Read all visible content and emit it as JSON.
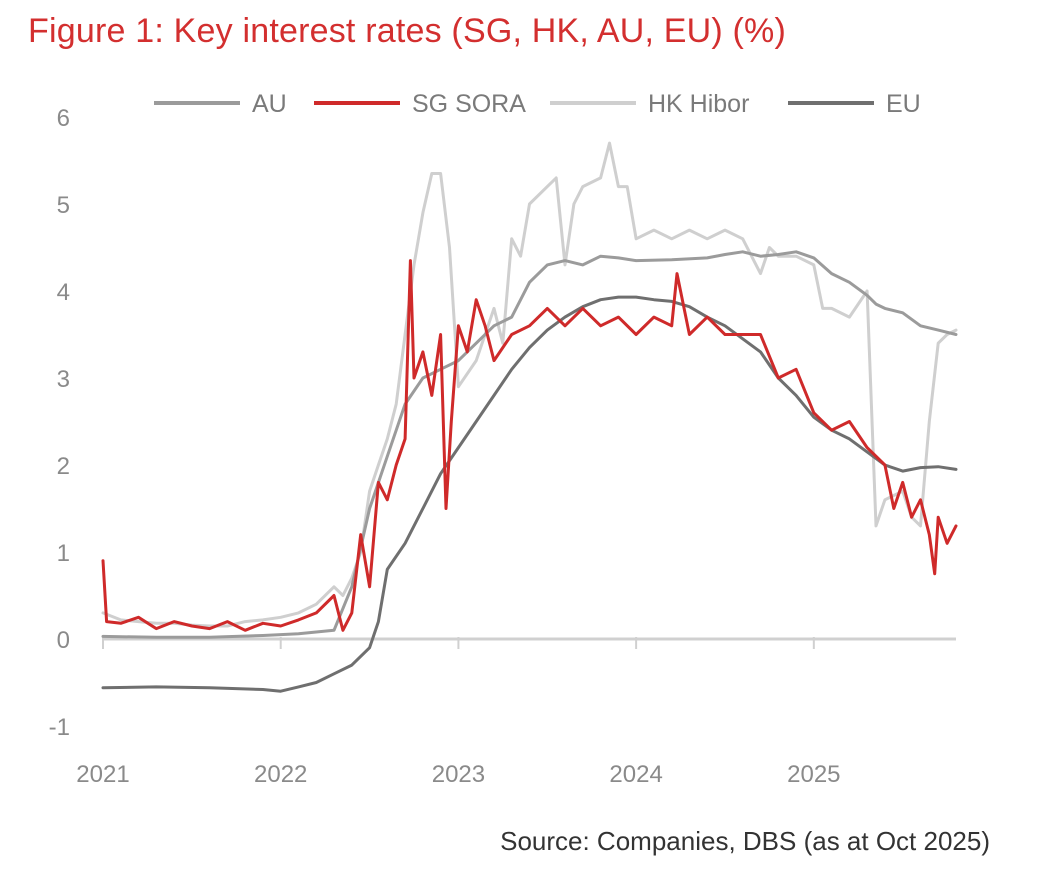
{
  "title": "Figure 1:  Key interest rates (SG, HK, AU, EU) (%)",
  "source": "Source:   Companies, DBS (as at Oct 2025)",
  "colors": {
    "title": "#d32f2f",
    "axis": "#d0d0d0",
    "tick_text": "#8a8a8a"
  },
  "chart_data": {
    "type": "line",
    "title": "Key interest rates (SG, HK, AU, EU) (%)",
    "xlabel": "",
    "ylabel": "%",
    "xlim": [
      2021.0,
      2025.8
    ],
    "ylim": [
      -1,
      6
    ],
    "x_ticks": [
      2021,
      2022,
      2023,
      2024,
      2025
    ],
    "x_tick_labels": [
      "2021",
      "2022",
      "2023",
      "2024",
      "2025"
    ],
    "y_ticks": [
      -1,
      0,
      1,
      2,
      3,
      4,
      5,
      6
    ],
    "y_tick_labels": [
      "-1",
      "0",
      "1",
      "2",
      "3",
      "4",
      "5",
      "6"
    ],
    "legend_position": "top",
    "legend": [
      "AU",
      "SG SORA",
      "HK Hibor",
      "EU"
    ],
    "series": [
      {
        "name": "AU",
        "color": "#9b9b9b",
        "width": 3,
        "points": [
          [
            2021.0,
            0.03
          ],
          [
            2021.3,
            0.02
          ],
          [
            2021.6,
            0.02
          ],
          [
            2021.9,
            0.04
          ],
          [
            2022.1,
            0.06
          ],
          [
            2022.3,
            0.1
          ],
          [
            2022.4,
            0.6
          ],
          [
            2022.5,
            1.5
          ],
          [
            2022.6,
            2.1
          ],
          [
            2022.7,
            2.7
          ],
          [
            2022.8,
            3.0
          ],
          [
            2022.9,
            3.1
          ],
          [
            2023.0,
            3.2
          ],
          [
            2023.1,
            3.4
          ],
          [
            2023.2,
            3.6
          ],
          [
            2023.3,
            3.7
          ],
          [
            2023.4,
            4.1
          ],
          [
            2023.5,
            4.3
          ],
          [
            2023.6,
            4.35
          ],
          [
            2023.7,
            4.3
          ],
          [
            2023.8,
            4.4
          ],
          [
            2023.9,
            4.38
          ],
          [
            2024.0,
            4.35
          ],
          [
            2024.2,
            4.36
          ],
          [
            2024.4,
            4.38
          ],
          [
            2024.5,
            4.42
          ],
          [
            2024.6,
            4.45
          ],
          [
            2024.7,
            4.4
          ],
          [
            2024.8,
            4.42
          ],
          [
            2024.9,
            4.45
          ],
          [
            2025.0,
            4.38
          ],
          [
            2025.1,
            4.2
          ],
          [
            2025.2,
            4.1
          ],
          [
            2025.3,
            3.95
          ],
          [
            2025.35,
            3.85
          ],
          [
            2025.4,
            3.8
          ],
          [
            2025.5,
            3.75
          ],
          [
            2025.6,
            3.6
          ],
          [
            2025.7,
            3.55
          ],
          [
            2025.8,
            3.5
          ]
        ]
      },
      {
        "name": "SG SORA",
        "color": "#cf2a2a",
        "width": 3,
        "points": [
          [
            2021.0,
            0.9
          ],
          [
            2021.02,
            0.2
          ],
          [
            2021.1,
            0.18
          ],
          [
            2021.2,
            0.25
          ],
          [
            2021.3,
            0.12
          ],
          [
            2021.4,
            0.2
          ],
          [
            2021.5,
            0.15
          ],
          [
            2021.6,
            0.12
          ],
          [
            2021.7,
            0.2
          ],
          [
            2021.8,
            0.1
          ],
          [
            2021.9,
            0.18
          ],
          [
            2022.0,
            0.15
          ],
          [
            2022.1,
            0.22
          ],
          [
            2022.2,
            0.3
          ],
          [
            2022.3,
            0.5
          ],
          [
            2022.35,
            0.1
          ],
          [
            2022.4,
            0.3
          ],
          [
            2022.45,
            1.2
          ],
          [
            2022.5,
            0.6
          ],
          [
            2022.55,
            1.8
          ],
          [
            2022.6,
            1.6
          ],
          [
            2022.65,
            2.0
          ],
          [
            2022.7,
            2.3
          ],
          [
            2022.73,
            4.35
          ],
          [
            2022.75,
            3.0
          ],
          [
            2022.8,
            3.3
          ],
          [
            2022.85,
            2.8
          ],
          [
            2022.9,
            3.5
          ],
          [
            2022.93,
            1.5
          ],
          [
            2022.96,
            2.5
          ],
          [
            2023.0,
            3.6
          ],
          [
            2023.05,
            3.3
          ],
          [
            2023.1,
            3.9
          ],
          [
            2023.15,
            3.6
          ],
          [
            2023.2,
            3.2
          ],
          [
            2023.3,
            3.5
          ],
          [
            2023.4,
            3.6
          ],
          [
            2023.5,
            3.8
          ],
          [
            2023.6,
            3.6
          ],
          [
            2023.7,
            3.8
          ],
          [
            2023.8,
            3.6
          ],
          [
            2023.9,
            3.7
          ],
          [
            2024.0,
            3.5
          ],
          [
            2024.1,
            3.7
          ],
          [
            2024.2,
            3.6
          ],
          [
            2024.23,
            4.2
          ],
          [
            2024.3,
            3.5
          ],
          [
            2024.4,
            3.7
          ],
          [
            2024.5,
            3.5
          ],
          [
            2024.6,
            3.5
          ],
          [
            2024.7,
            3.5
          ],
          [
            2024.8,
            3.0
          ],
          [
            2024.9,
            3.1
          ],
          [
            2025.0,
            2.6
          ],
          [
            2025.1,
            2.4
          ],
          [
            2025.2,
            2.5
          ],
          [
            2025.3,
            2.2
          ],
          [
            2025.4,
            2.0
          ],
          [
            2025.45,
            1.5
          ],
          [
            2025.5,
            1.8
          ],
          [
            2025.55,
            1.4
          ],
          [
            2025.6,
            1.6
          ],
          [
            2025.65,
            1.2
          ],
          [
            2025.68,
            0.75
          ],
          [
            2025.7,
            1.4
          ],
          [
            2025.75,
            1.1
          ],
          [
            2025.8,
            1.3
          ]
        ]
      },
      {
        "name": "HK Hibor",
        "color": "#cfcfcf",
        "width": 3,
        "points": [
          [
            2021.0,
            0.3
          ],
          [
            2021.1,
            0.22
          ],
          [
            2021.2,
            0.2
          ],
          [
            2021.3,
            0.18
          ],
          [
            2021.4,
            0.18
          ],
          [
            2021.5,
            0.16
          ],
          [
            2021.6,
            0.15
          ],
          [
            2021.7,
            0.15
          ],
          [
            2021.8,
            0.2
          ],
          [
            2021.9,
            0.22
          ],
          [
            2022.0,
            0.25
          ],
          [
            2022.1,
            0.3
          ],
          [
            2022.2,
            0.4
          ],
          [
            2022.3,
            0.6
          ],
          [
            2022.35,
            0.5
          ],
          [
            2022.4,
            0.7
          ],
          [
            2022.45,
            1.0
          ],
          [
            2022.5,
            1.7
          ],
          [
            2022.55,
            2.0
          ],
          [
            2022.6,
            2.3
          ],
          [
            2022.65,
            2.7
          ],
          [
            2022.7,
            3.5
          ],
          [
            2022.75,
            4.3
          ],
          [
            2022.8,
            4.9
          ],
          [
            2022.85,
            5.35
          ],
          [
            2022.9,
            5.35
          ],
          [
            2022.95,
            4.5
          ],
          [
            2023.0,
            2.9
          ],
          [
            2023.1,
            3.2
          ],
          [
            2023.2,
            3.8
          ],
          [
            2023.25,
            3.4
          ],
          [
            2023.3,
            4.6
          ],
          [
            2023.35,
            4.4
          ],
          [
            2023.4,
            5.0
          ],
          [
            2023.5,
            5.2
          ],
          [
            2023.55,
            5.3
          ],
          [
            2023.6,
            4.3
          ],
          [
            2023.65,
            5.0
          ],
          [
            2023.7,
            5.2
          ],
          [
            2023.8,
            5.3
          ],
          [
            2023.85,
            5.7
          ],
          [
            2023.9,
            5.2
          ],
          [
            2023.95,
            5.2
          ],
          [
            2024.0,
            4.6
          ],
          [
            2024.1,
            4.7
          ],
          [
            2024.2,
            4.6
          ],
          [
            2024.3,
            4.7
          ],
          [
            2024.4,
            4.6
          ],
          [
            2024.5,
            4.7
          ],
          [
            2024.6,
            4.6
          ],
          [
            2024.7,
            4.2
          ],
          [
            2024.75,
            4.5
          ],
          [
            2024.8,
            4.4
          ],
          [
            2024.9,
            4.4
          ],
          [
            2025.0,
            4.3
          ],
          [
            2025.05,
            3.8
          ],
          [
            2025.1,
            3.8
          ],
          [
            2025.2,
            3.7
          ],
          [
            2025.3,
            4.0
          ],
          [
            2025.35,
            1.3
          ],
          [
            2025.4,
            1.6
          ],
          [
            2025.5,
            1.7
          ],
          [
            2025.55,
            1.4
          ],
          [
            2025.6,
            1.3
          ],
          [
            2025.65,
            2.5
          ],
          [
            2025.7,
            3.4
          ],
          [
            2025.75,
            3.5
          ],
          [
            2025.8,
            3.55
          ]
        ]
      },
      {
        "name": "EU",
        "color": "#6f6f6f",
        "width": 3,
        "points": [
          [
            2021.0,
            -0.56
          ],
          [
            2021.3,
            -0.55
          ],
          [
            2021.6,
            -0.56
          ],
          [
            2021.9,
            -0.58
          ],
          [
            2022.0,
            -0.6
          ],
          [
            2022.1,
            -0.55
          ],
          [
            2022.2,
            -0.5
          ],
          [
            2022.3,
            -0.4
          ],
          [
            2022.4,
            -0.3
          ],
          [
            2022.5,
            -0.1
          ],
          [
            2022.55,
            0.2
          ],
          [
            2022.6,
            0.8
          ],
          [
            2022.7,
            1.1
          ],
          [
            2022.8,
            1.5
          ],
          [
            2022.9,
            1.9
          ],
          [
            2023.0,
            2.2
          ],
          [
            2023.1,
            2.5
          ],
          [
            2023.2,
            2.8
          ],
          [
            2023.3,
            3.1
          ],
          [
            2023.4,
            3.35
          ],
          [
            2023.5,
            3.55
          ],
          [
            2023.6,
            3.7
          ],
          [
            2023.7,
            3.82
          ],
          [
            2023.8,
            3.9
          ],
          [
            2023.9,
            3.93
          ],
          [
            2024.0,
            3.93
          ],
          [
            2024.1,
            3.9
          ],
          [
            2024.2,
            3.88
          ],
          [
            2024.3,
            3.82
          ],
          [
            2024.4,
            3.7
          ],
          [
            2024.5,
            3.6
          ],
          [
            2024.6,
            3.45
          ],
          [
            2024.7,
            3.3
          ],
          [
            2024.8,
            3.0
          ],
          [
            2024.9,
            2.8
          ],
          [
            2025.0,
            2.55
          ],
          [
            2025.1,
            2.4
          ],
          [
            2025.2,
            2.3
          ],
          [
            2025.3,
            2.15
          ],
          [
            2025.4,
            2.0
          ],
          [
            2025.5,
            1.93
          ],
          [
            2025.6,
            1.97
          ],
          [
            2025.7,
            1.98
          ],
          [
            2025.8,
            1.95
          ]
        ]
      }
    ]
  }
}
